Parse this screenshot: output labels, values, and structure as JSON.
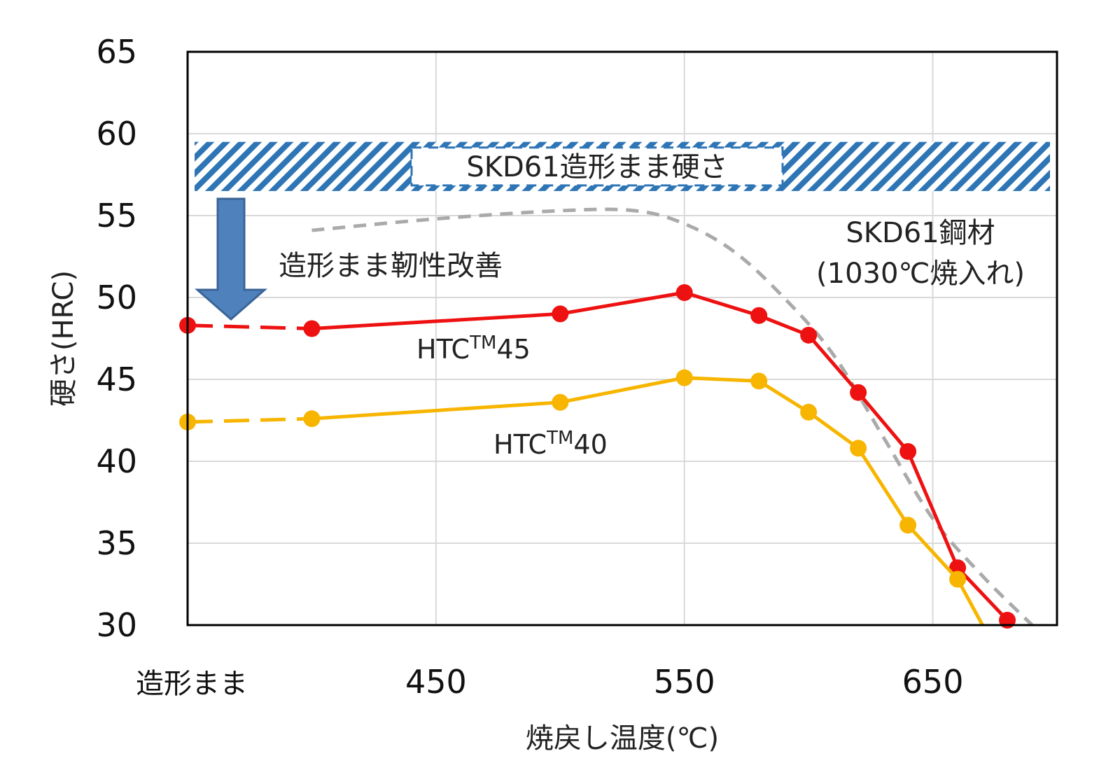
{
  "chart_data": {
    "type": "line",
    "xlabel": "焼戻し温度(℃)",
    "ylabel": "硬さ(HRC)",
    "x_tick_labels": [
      {
        "x": 350,
        "label": "造形まま"
      },
      {
        "x": 450,
        "label": "450"
      },
      {
        "x": 550,
        "label": "550"
      },
      {
        "x": 650,
        "label": "650"
      }
    ],
    "xlim": [
      350,
      700
    ],
    "ylim": [
      30,
      65
    ],
    "y_ticks": [
      30,
      35,
      40,
      45,
      50,
      55,
      60,
      65
    ],
    "grid": true,
    "series": [
      {
        "name": "HTC",
        "name_sup": "TM",
        "name_suffix": "45",
        "color": "#ee1111",
        "points": [
          [
            350,
            48.3
          ],
          [
            400,
            48.1
          ],
          [
            500,
            49.0
          ],
          [
            550,
            50.3
          ],
          [
            580,
            48.9
          ],
          [
            600,
            47.7
          ],
          [
            620,
            44.2
          ],
          [
            640,
            40.6
          ],
          [
            660,
            33.5
          ],
          [
            680,
            30.3
          ]
        ]
      },
      {
        "name": "HTC",
        "name_sup": "TM",
        "name_suffix": "40",
        "color": "#f7b500",
        "points": [
          [
            350,
            42.4
          ],
          [
            400,
            42.6
          ],
          [
            500,
            43.6
          ],
          [
            550,
            45.1
          ],
          [
            580,
            44.9
          ],
          [
            600,
            43.0
          ],
          [
            620,
            40.8
          ],
          [
            640,
            36.1
          ],
          [
            660,
            32.8
          ],
          [
            670,
            30.0
          ]
        ]
      }
    ],
    "reference_curve": {
      "label_line1": "SKD61鋼材",
      "label_line2": "(1030℃焼入れ)",
      "color": "#aaaaaa",
      "points": [
        [
          400,
          54.1
        ],
        [
          450,
          54.8
        ],
        [
          500,
          55.3
        ],
        [
          530,
          55.3
        ],
        [
          550,
          54.5
        ],
        [
          570,
          52.8
        ],
        [
          590,
          50.0
        ],
        [
          610,
          46.5
        ],
        [
          630,
          41.5
        ],
        [
          650,
          36.5
        ],
        [
          670,
          33.0
        ],
        [
          690,
          30.0
        ]
      ]
    },
    "band": {
      "label": "SKD61造形まま硬さ",
      "y_range": [
        56.5,
        59.5
      ],
      "color": "#2e75b6"
    },
    "arrow": {
      "label": "造形まま靭性改善",
      "color": "#4f81bd",
      "outline": "#3a6496"
    }
  }
}
